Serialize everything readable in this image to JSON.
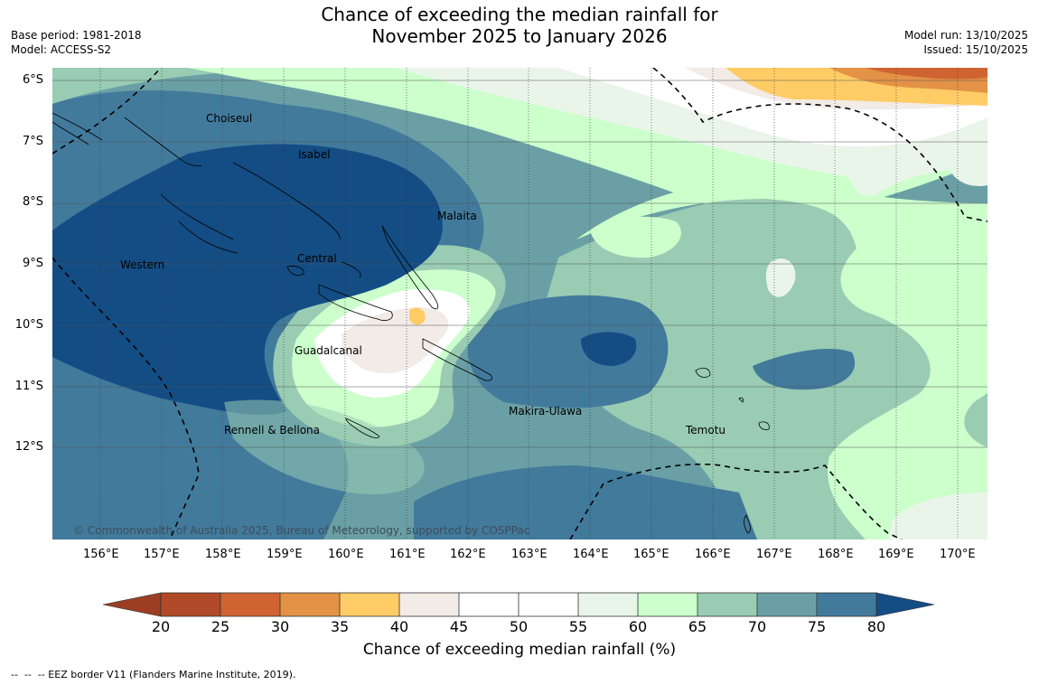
{
  "title": {
    "line1": "Chance of exceeding the median rainfall for",
    "line2": "November 2025 to January 2026"
  },
  "meta": {
    "base_period": "Base period: 1981-2018",
    "model": "Model: ACCESS-S2",
    "model_run": "Model run: 13/10/2025",
    "issued": "Issued: 15/10/2025"
  },
  "map": {
    "lat_labels": [
      "6°S",
      "7°S",
      "8°S",
      "9°S",
      "10°S",
      "11°S",
      "12°S"
    ],
    "lon_labels": [
      "156°E",
      "157°E",
      "158°E",
      "159°E",
      "160°E",
      "161°E",
      "162°E",
      "163°E",
      "164°E",
      "165°E",
      "166°E",
      "167°E",
      "168°E",
      "169°E",
      "170°E"
    ],
    "places": [
      {
        "id": "choiseul",
        "name": "Choiseul"
      },
      {
        "id": "isabel",
        "name": "Isabel"
      },
      {
        "id": "malaita",
        "name": "Malaita"
      },
      {
        "id": "western",
        "name": "Western"
      },
      {
        "id": "central",
        "name": "Central"
      },
      {
        "id": "guadalcanal",
        "name": "Guadalcanal"
      },
      {
        "id": "makira-ulawa",
        "name": "Makira-Ulawa"
      },
      {
        "id": "rennell-bellona",
        "name": "Rennell & Bellona"
      },
      {
        "id": "temotu",
        "name": "Temotu"
      }
    ],
    "copyright": "© Commonwealth of Australia 2025, Bureau of Meteorology, supported by COSPPac",
    "colors": {
      "c20_25": "#b14a28",
      "c25_30": "#cf6432",
      "c30_35": "#e39246",
      "c35_40": "#ffcc66",
      "c40_45": "#f2ebe6",
      "c45_50": "#ffffff",
      "c50_55": "#ffffff",
      "c55_60": "#eaf5ea",
      "c60_65": "#ccffcc",
      "c65_70": "#99ccb3",
      "c70_75": "#6aa0a5",
      "c75_80": "#427a9c",
      "c80plus": "#134d84"
    }
  },
  "colorbar": {
    "ticks": [
      "20",
      "25",
      "30",
      "35",
      "40",
      "45",
      "50",
      "55",
      "60",
      "65",
      "70",
      "75",
      "80"
    ],
    "title": "Chance of exceeding median rainfall (%)"
  },
  "footnote": "--  --  -- EEZ border V11 (Flanders Marine Institute, 2019)."
}
